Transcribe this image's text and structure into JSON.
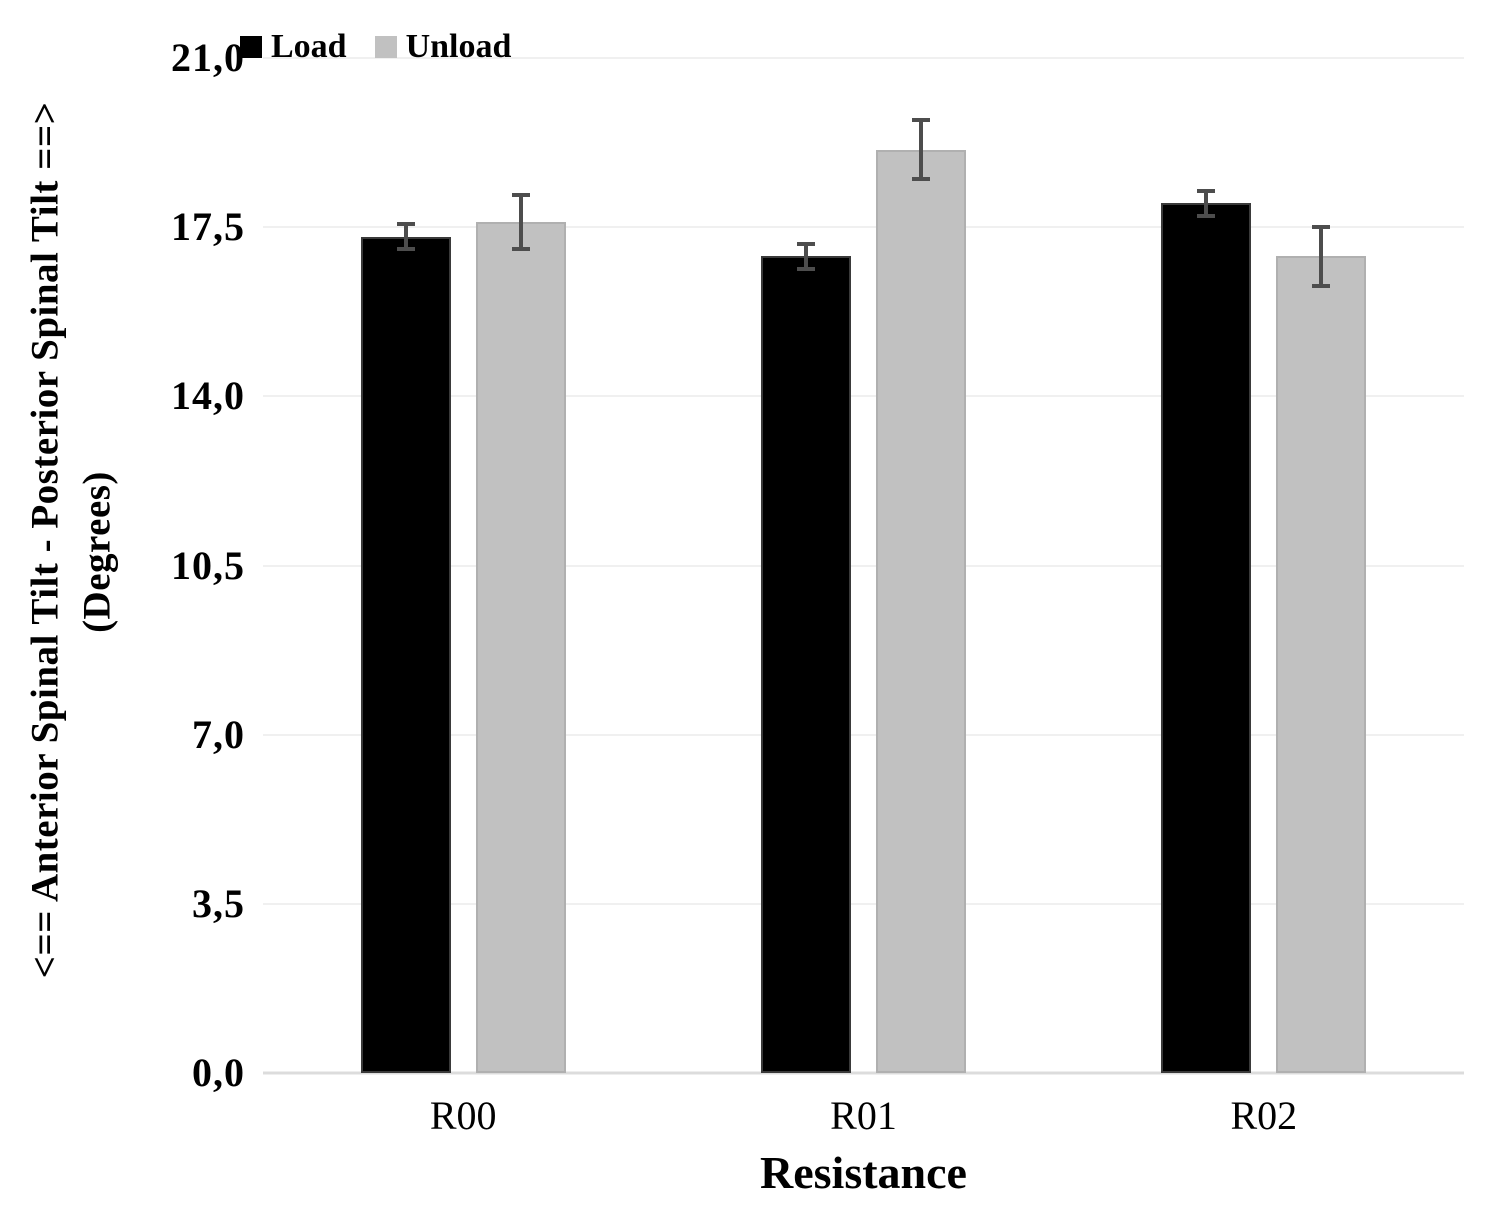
{
  "chart_data": {
    "type": "bar",
    "categories": [
      "R00",
      "R01",
      "R02"
    ],
    "series": [
      {
        "name": "Load",
        "color": "#000000",
        "border_color": "#3a3a3a",
        "values": [
          17.3,
          16.9,
          18.0
        ],
        "errors": [
          0.3,
          0.3,
          0.3
        ]
      },
      {
        "name": "Unload",
        "color": "#c1c1c1",
        "border_color": "#b0b0b0",
        "values": [
          17.6,
          19.1,
          16.9
        ],
        "errors": [
          0.6,
          0.65,
          0.65
        ]
      }
    ],
    "xlabel": "Resistance",
    "ylabel_line1": "<== Anterior Spinal Tilt - Posterior Spinal Tilt ==>",
    "ylabel_line2": "(Degrees)",
    "ylim": [
      0,
      21
    ],
    "ytick_step": 3.5,
    "yticks": [
      {
        "value": 0,
        "label": "0,0"
      },
      {
        "value": 3.5,
        "label": "3,5"
      },
      {
        "value": 7,
        "label": "7,0"
      },
      {
        "value": 10.5,
        "label": "10,5"
      },
      {
        "value": 14,
        "label": "14,0"
      },
      {
        "value": 17.5,
        "label": "17,5"
      },
      {
        "value": 21,
        "label": "21,0"
      }
    ],
    "grid": "horizontal",
    "legend_position": "top-left",
    "error_bar_color": "#4d4d4d",
    "gridline_color": "#f0f0f0",
    "axis_line_color": "#dcdcdc"
  }
}
